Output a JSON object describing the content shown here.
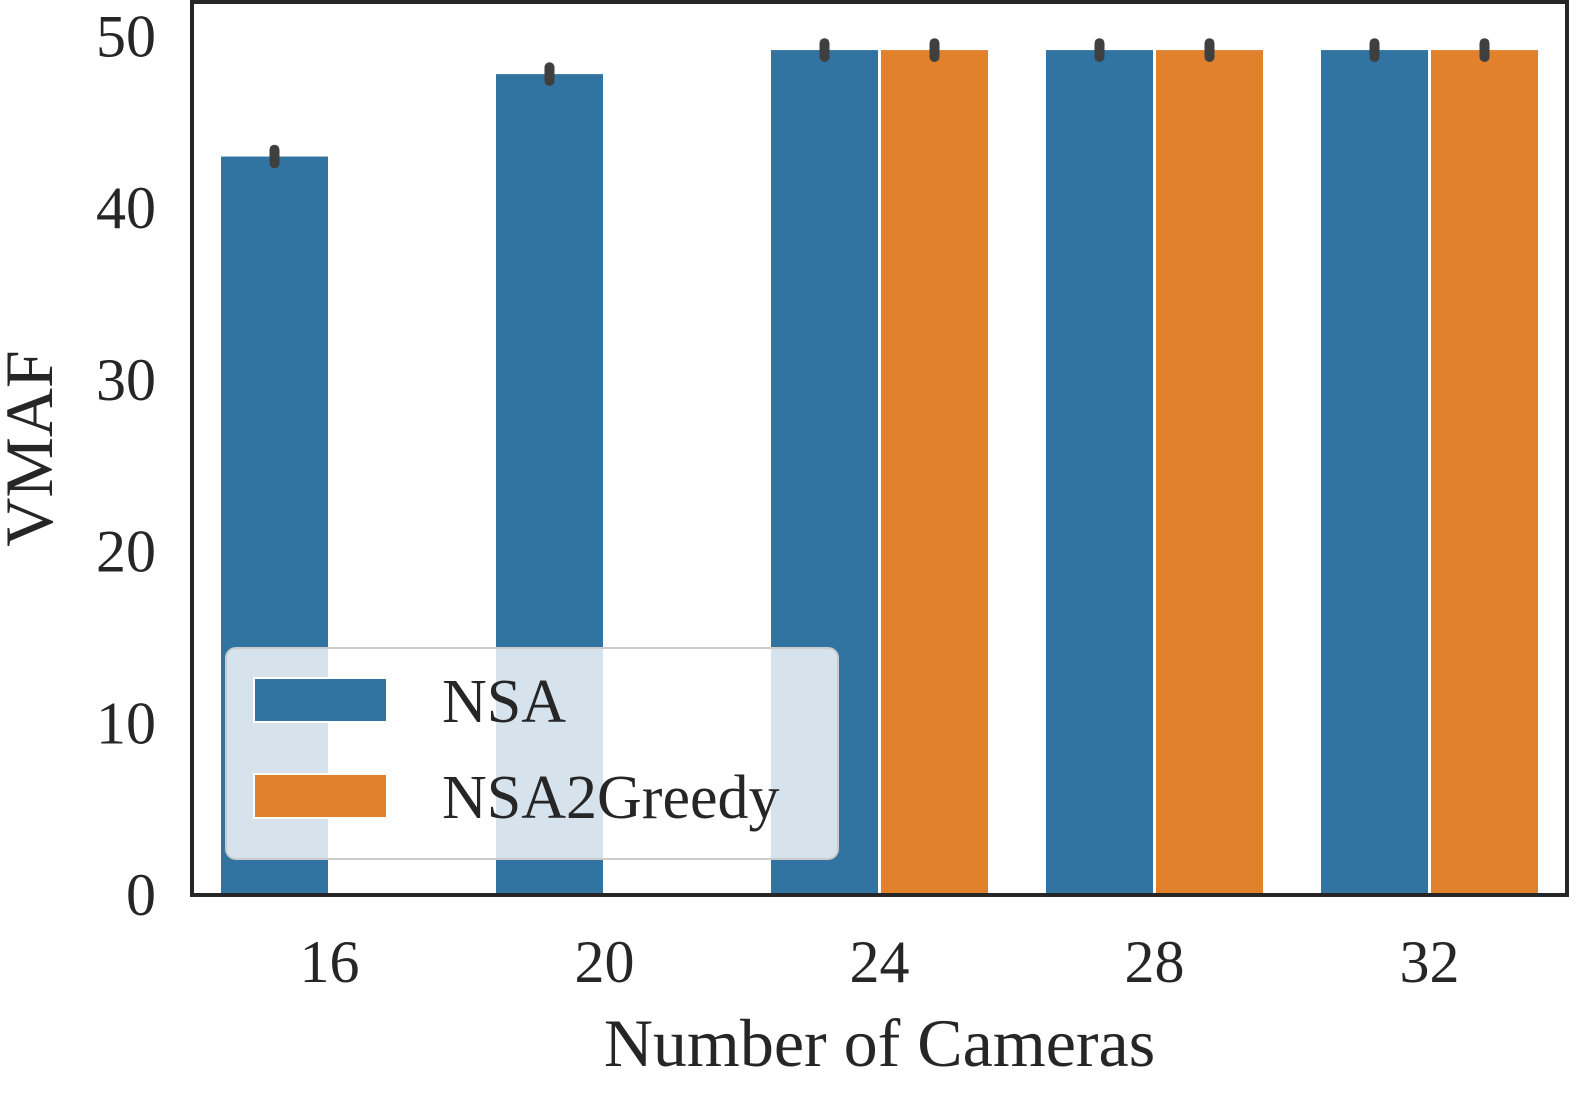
{
  "chart_data": {
    "type": "bar",
    "categories": [
      "16",
      "20",
      "24",
      "28",
      "32"
    ],
    "series": [
      {
        "name": "NSA",
        "color": "#3274a1",
        "values": [
          43.0,
          47.8,
          49.2,
          49.2,
          49.2
        ],
        "error": [
          0.4,
          0.4,
          0.4,
          0.4,
          0.4
        ]
      },
      {
        "name": "NSA2Greedy",
        "color": "#e1812c",
        "values": [
          null,
          null,
          49.2,
          49.2,
          49.2
        ],
        "error": [
          null,
          null,
          0.4,
          0.4,
          0.4
        ]
      }
    ],
    "xlabel": "Number of Cameras",
    "ylabel": "VMAF",
    "ylim": [
      0,
      52
    ],
    "yticks": [
      0,
      10,
      20,
      30,
      40,
      50
    ],
    "legend_position": "lower-left",
    "grid": false,
    "errorbar_color": "#3f3f3f"
  }
}
